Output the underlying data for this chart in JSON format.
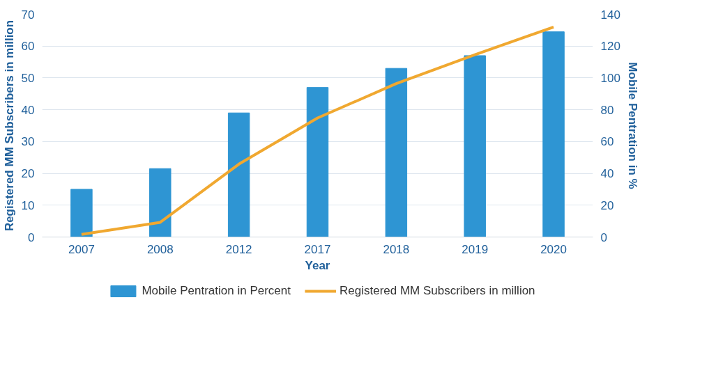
{
  "chart_data": {
    "type": "bar",
    "xlabel": "Year",
    "ylabel": "Registered MM Subscribers in million",
    "y2label": "Mobile Pentration in %",
    "categories": [
      "2007",
      "2008",
      "2012",
      "2017",
      "2018",
      "2019",
      "2020"
    ],
    "series": [
      {
        "name": "Mobile Pentration in Percent",
        "type": "bar",
        "axis": "y2",
        "color": "#2e95d3",
        "values": [
          30,
          43,
          78,
          94,
          106,
          114,
          129
        ]
      },
      {
        "name": "Registered MM Subscribers in million",
        "type": "line",
        "color": "#f0a830",
        "values": [
          0.8,
          4.6,
          22.9,
          37.4,
          48.2,
          57.3,
          66
        ]
      }
    ],
    "ylim": [
      0,
      70
    ],
    "yticks": [
      0,
      10,
      20,
      30,
      40,
      50,
      60,
      70
    ],
    "y2lim": [
      0,
      140
    ],
    "y2ticks": [
      0,
      20,
      40,
      60,
      80,
      100,
      120,
      140
    ],
    "grid": "y",
    "legend": "bottom",
    "line_style": "solid",
    "marker": "none"
  }
}
